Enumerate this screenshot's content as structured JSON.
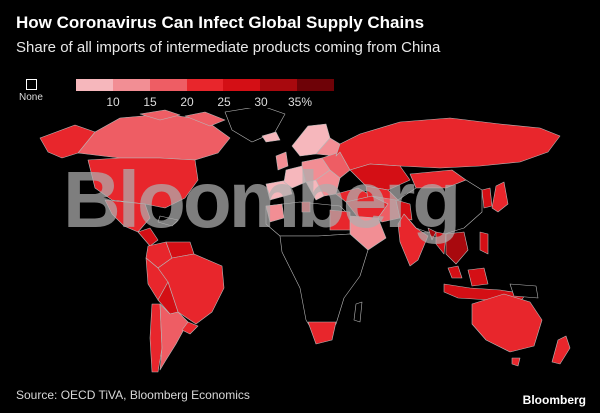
{
  "header": {
    "title": "How Coronavirus Can Infect Global Supply Chains",
    "subtitle": "Share of all imports of intermediate products coming from China"
  },
  "legend": {
    "none_label": "None",
    "ticks": [
      "10",
      "15",
      "20",
      "25",
      "30",
      "35%"
    ],
    "colors": [
      "#f6b7bc",
      "#f28e94",
      "#ee5d64",
      "#e8262c",
      "#d40f15",
      "#a8090e",
      "#6e0207"
    ]
  },
  "watermark": "Bloomberg",
  "footer": {
    "source": "Source: OECD TiVA, Bloomberg Economics",
    "brand": "Bloomberg"
  },
  "map_colors": {
    "background": "#000000",
    "border": "#b8b8b8",
    "none": "#000000"
  }
}
